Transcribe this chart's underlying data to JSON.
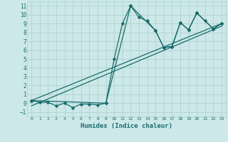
{
  "xlabel": "Humidex (Indice chaleur)",
  "xlim": [
    -0.5,
    23.5
  ],
  "ylim": [
    -1.5,
    11.5
  ],
  "xticks": [
    0,
    1,
    2,
    3,
    4,
    5,
    6,
    7,
    8,
    9,
    10,
    11,
    12,
    13,
    14,
    15,
    16,
    17,
    18,
    19,
    20,
    21,
    22,
    23
  ],
  "yticks": [
    -1,
    0,
    1,
    2,
    3,
    4,
    5,
    6,
    7,
    8,
    9,
    10,
    11
  ],
  "bg_color": "#cce8e8",
  "grid_color": "#aacfcf",
  "line_color": "#1a6b6b",
  "line1_x": [
    0,
    1,
    2,
    3,
    4,
    5,
    6,
    7,
    8,
    9,
    10,
    11,
    12,
    13,
    14,
    15,
    16,
    17,
    18,
    19,
    20,
    21,
    22,
    23
  ],
  "line1_y": [
    0.3,
    0.1,
    0.1,
    -0.3,
    0.0,
    -0.5,
    -0.1,
    -0.1,
    -0.2,
    0.0,
    5.0,
    9.0,
    11.0,
    9.7,
    9.3,
    8.2,
    6.3,
    6.4,
    9.1,
    8.3,
    10.2,
    9.3,
    8.4,
    9.0
  ],
  "line2_x": [
    0,
    9,
    12,
    15,
    16,
    17,
    18,
    19,
    20,
    22,
    23
  ],
  "line2_y": [
    0.3,
    0.0,
    11.0,
    8.2,
    6.3,
    6.4,
    9.1,
    8.3,
    10.2,
    8.4,
    9.0
  ],
  "line3_x": [
    0,
    23
  ],
  "line3_y": [
    0.3,
    9.0
  ],
  "line4_x": [
    0,
    23
  ],
  "line4_y": [
    -0.3,
    8.7
  ],
  "figsize": [
    3.2,
    2.0
  ],
  "dpi": 100
}
